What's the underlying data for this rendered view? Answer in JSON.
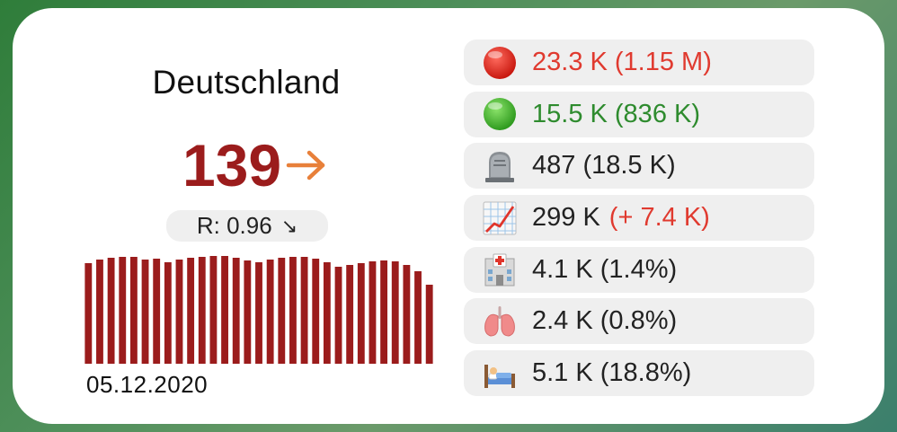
{
  "widget": {
    "country": "Deutschland",
    "incidence": "139",
    "incidence_color": "#9b1c1c",
    "incidence_trend": "right-arrow-icon",
    "trend_color": "#e8803a",
    "r_value_text": "R: 0.96",
    "r_trend_glyph": "↘",
    "date": "05.12.2020",
    "bar_color": "#9b1c1c"
  },
  "chart_data": {
    "type": "bar",
    "values": [
      112,
      116,
      118,
      119,
      119,
      116,
      117,
      113,
      116,
      118,
      119,
      120,
      120,
      118,
      115,
      113,
      116,
      118,
      119,
      119,
      117,
      113,
      108,
      110,
      112,
      114,
      115,
      114,
      110,
      103,
      88
    ],
    "ylim": [
      0,
      126
    ]
  },
  "stats": [
    {
      "icon": "red-circle-icon",
      "text": "23.3 K (1.15 M)",
      "color": "#e03a2f"
    },
    {
      "icon": "green-circle-icon",
      "text": "15.5 K (836 K)",
      "color": "#2e8b2e"
    },
    {
      "icon": "tombstone-icon",
      "text": "487 (18.5 K)",
      "color": "#222222"
    },
    {
      "icon": "chart-increasing-icon",
      "main": "299 K",
      "delta": "(+ 7.4 K)",
      "color": "#222222",
      "delta_color": "#e03a2f"
    },
    {
      "icon": "hospital-icon",
      "text": "4.1 K (1.4%)",
      "color": "#222222"
    },
    {
      "icon": "lungs-icon",
      "text": "2.4 K (0.8%)",
      "color": "#222222"
    },
    {
      "icon": "bed-icon",
      "text": "5.1 K (18.8%)",
      "color": "#222222"
    }
  ]
}
